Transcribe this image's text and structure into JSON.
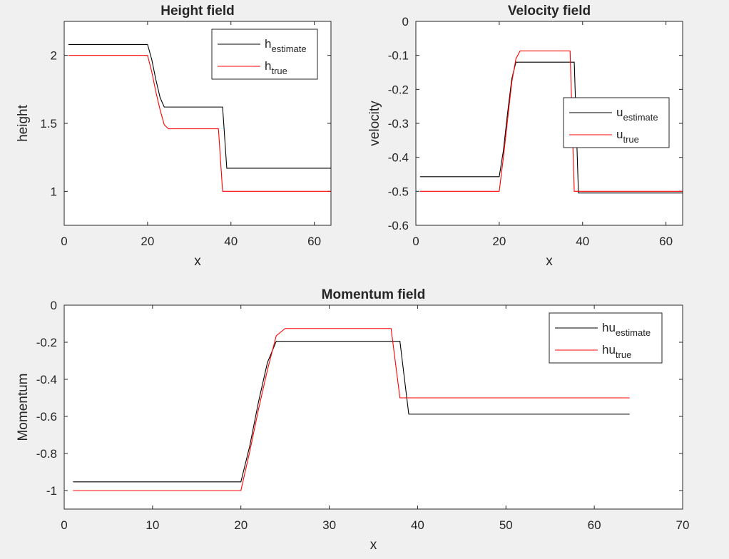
{
  "chart_data": [
    {
      "type": "line",
      "title": "Height field",
      "xlabel": "x",
      "ylabel": "height",
      "xlim": [
        0,
        64
      ],
      "ylim": [
        0.75,
        2.25
      ],
      "xticks": [
        0,
        20,
        40,
        60
      ],
      "yticks": [
        1,
        1.5,
        2
      ],
      "xtick_labels": [
        "0",
        "20",
        "40",
        "60"
      ],
      "ytick_labels": [
        "1",
        "1.5",
        "2"
      ],
      "legend_position": "top-right",
      "series": [
        {
          "name": "h",
          "name_sub": "estimate",
          "color": "#000000",
          "points": [
            [
              1,
              2.08
            ],
            [
              20,
              2.08
            ],
            [
              21,
              1.97
            ],
            [
              22,
              1.82
            ],
            [
              23,
              1.69
            ],
            [
              24,
              1.62
            ],
            [
              38,
              1.62
            ],
            [
              39,
              1.17
            ],
            [
              64,
              1.17
            ]
          ]
        },
        {
          "name": "h",
          "name_sub": "true",
          "color": "#ff0000",
          "points": [
            [
              1,
              2.0
            ],
            [
              20,
              2.0
            ],
            [
              21,
              1.88
            ],
            [
              22,
              1.73
            ],
            [
              23,
              1.6
            ],
            [
              24,
              1.49
            ],
            [
              25,
              1.46
            ],
            [
              37,
              1.46
            ],
            [
              38,
              1.0
            ],
            [
              64,
              1.0
            ]
          ]
        }
      ]
    },
    {
      "type": "line",
      "title": "Velocity field",
      "xlabel": "x",
      "ylabel": "velocity",
      "xlim": [
        0,
        64
      ],
      "ylim": [
        -0.6,
        0
      ],
      "xticks": [
        0,
        20,
        40,
        60
      ],
      "yticks": [
        -0.6,
        -0.5,
        -0.4,
        -0.3,
        -0.2,
        -0.1,
        0
      ],
      "xtick_labels": [
        "0",
        "20",
        "40",
        "60"
      ],
      "ytick_labels": [
        "-0.6",
        "-0.5",
        "-0.4",
        "-0.3",
        "-0.2",
        "-0.1",
        "0"
      ],
      "legend_position": "right",
      "series": [
        {
          "name": "u",
          "name_sub": "estimate",
          "color": "#000000",
          "points": [
            [
              1,
              -0.457
            ],
            [
              20,
              -0.457
            ],
            [
              21,
              -0.38
            ],
            [
              22,
              -0.27
            ],
            [
              23,
              -0.17
            ],
            [
              24,
              -0.12
            ],
            [
              38,
              -0.12
            ],
            [
              39,
              -0.505
            ],
            [
              64,
              -0.505
            ]
          ]
        },
        {
          "name": "u",
          "name_sub": "true",
          "color": "#ff0000",
          "points": [
            [
              1,
              -0.5
            ],
            [
              20,
              -0.5
            ],
            [
              21,
              -0.4
            ],
            [
              22,
              -0.29
            ],
            [
              23,
              -0.18
            ],
            [
              24,
              -0.11
            ],
            [
              25,
              -0.087
            ],
            [
              37,
              -0.087
            ],
            [
              38,
              -0.5
            ],
            [
              64,
              -0.5
            ]
          ]
        }
      ]
    },
    {
      "type": "line",
      "title": "Momentum field",
      "xlabel": "x",
      "ylabel": "Momentum",
      "xlim": [
        0,
        70
      ],
      "ylim": [
        -1.1,
        0
      ],
      "xticks": [
        0,
        10,
        20,
        30,
        40,
        50,
        60,
        70
      ],
      "yticks": [
        -1,
        -0.8,
        -0.6,
        -0.4,
        -0.2,
        0
      ],
      "xtick_labels": [
        "0",
        "10",
        "20",
        "30",
        "40",
        "50",
        "60",
        "70"
      ],
      "ytick_labels": [
        "-1",
        "-0.8",
        "-0.6",
        "-0.4",
        "-0.2",
        "0"
      ],
      "legend_position": "top-right",
      "series": [
        {
          "name": "hu",
          "name_sub": "estimate",
          "color": "#000000",
          "points": [
            [
              1,
              -0.953
            ],
            [
              20,
              -0.953
            ],
            [
              21,
              -0.76
            ],
            [
              22,
              -0.52
            ],
            [
              23,
              -0.31
            ],
            [
              24,
              -0.195
            ],
            [
              38,
              -0.195
            ],
            [
              39,
              -0.588
            ],
            [
              64,
              -0.588
            ]
          ]
        },
        {
          "name": "hu",
          "name_sub": "true",
          "color": "#ff0000",
          "points": [
            [
              1,
              -1.0
            ],
            [
              20,
              -1.0
            ],
            [
              21,
              -0.79
            ],
            [
              22,
              -0.56
            ],
            [
              23,
              -0.35
            ],
            [
              24,
              -0.165
            ],
            [
              25,
              -0.126
            ],
            [
              37,
              -0.126
            ],
            [
              38,
              -0.5
            ],
            [
              64,
              -0.5
            ]
          ]
        }
      ]
    }
  ]
}
